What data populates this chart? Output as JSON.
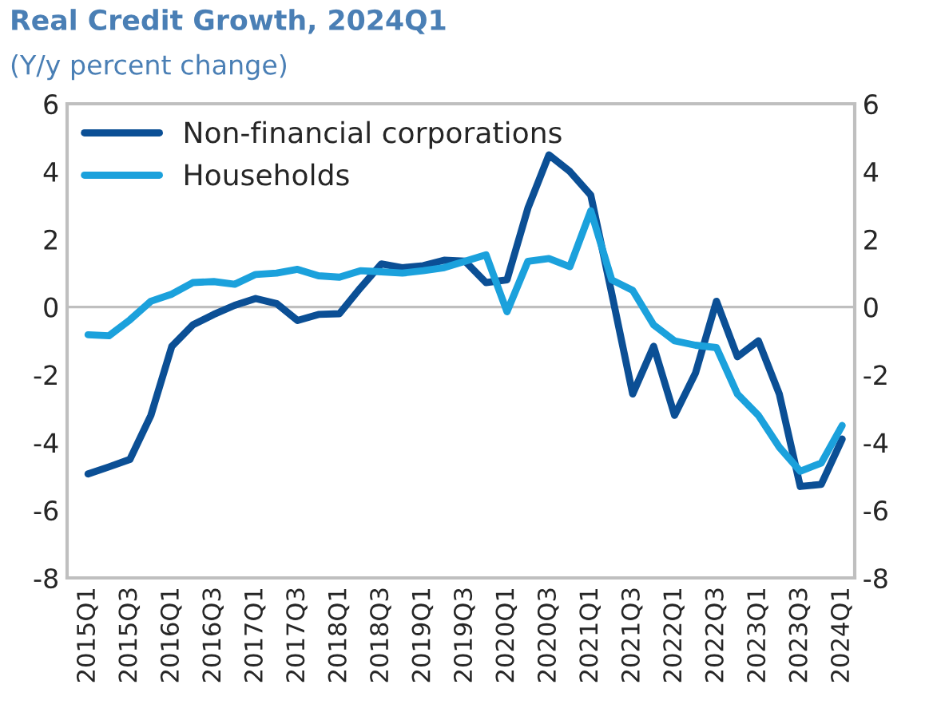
{
  "chart_data": {
    "type": "line",
    "title": "Real Credit Growth, 2024Q1",
    "subtitle": "(Y/y percent change)",
    "categories": [
      "2015Q1",
      null,
      "2015Q3",
      null,
      "2016Q1",
      null,
      "2016Q3",
      null,
      "2017Q1",
      null,
      "2017Q3",
      null,
      "2018Q1",
      null,
      "2018Q3",
      null,
      "2019Q1",
      null,
      "2019Q3",
      null,
      "2020Q1",
      null,
      "2020Q3",
      null,
      "2021Q1",
      null,
      "2021Q3",
      null,
      "2022Q1",
      null,
      "2022Q3",
      null,
      "2023Q1",
      null,
      "2023Q3",
      null,
      "2024Q1"
    ],
    "series": [
      {
        "name": "Non-financial corporations",
        "color": "#0b4f95",
        "values": [
          -4.93,
          -4.72,
          -4.5,
          -3.2,
          -1.16,
          -0.53,
          -0.22,
          0.05,
          0.25,
          0.1,
          -0.4,
          -0.22,
          -0.2,
          0.56,
          1.27,
          1.16,
          1.22,
          1.38,
          1.35,
          0.72,
          0.8,
          2.92,
          4.49,
          4.0,
          3.3,
          0.4,
          -2.57,
          -1.16,
          -3.2,
          -1.95,
          0.17,
          -1.47,
          -1.0,
          -2.57,
          -5.3,
          -5.24,
          -3.9
        ]
      },
      {
        "name": "Households",
        "color": "#1ba1dc",
        "values": [
          -0.82,
          -0.85,
          -0.38,
          0.17,
          0.38,
          0.72,
          0.75,
          0.67,
          0.96,
          1.0,
          1.11,
          0.92,
          0.88,
          1.07,
          1.04,
          1.0,
          1.07,
          1.16,
          1.35,
          1.54,
          -0.14,
          1.35,
          1.43,
          1.19,
          2.84,
          0.8,
          0.49,
          -0.53,
          -1.0,
          -1.13,
          -1.2,
          -2.57,
          -3.2,
          -4.14,
          -4.85,
          -4.61,
          -3.5
        ]
      }
    ],
    "ylim": [
      -8,
      6
    ],
    "yticks": [
      -8,
      -6,
      -4,
      -2,
      0,
      2,
      4,
      6
    ],
    "y2lim": [
      -8,
      6
    ],
    "y2ticks": [
      -8,
      -6,
      -4,
      -2,
      0,
      2,
      4,
      6
    ],
    "ref_lines": [
      {
        "axis": "y",
        "value": 0,
        "color": "#bfbfbf"
      }
    ],
    "legend": "top left",
    "grid": false,
    "marker": "none",
    "line_style": "solid"
  }
}
